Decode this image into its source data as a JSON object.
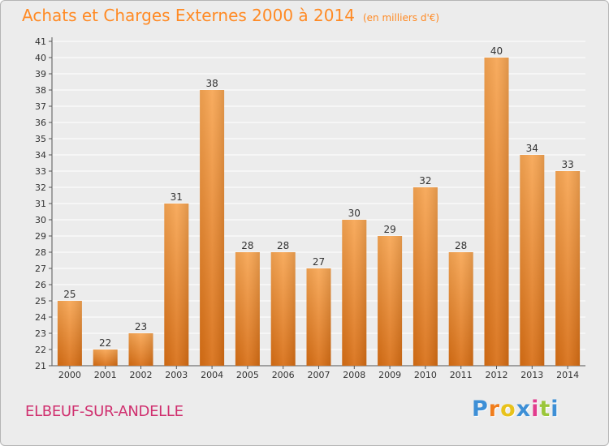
{
  "header": {
    "title": "Achats et Charges Externes 2000 à 2014",
    "unit": "(en milliers d'€)"
  },
  "footer": {
    "location": "ELBEUF-SUR-ANDELLE",
    "logo_letters": [
      "P",
      "r",
      "o",
      "x",
      "i",
      "t",
      "i"
    ],
    "logo_colors": [
      "#3d8fd6",
      "#f07d1c",
      "#e8c21b",
      "#3d8fd6",
      "#e23c8d",
      "#9bc63a",
      "#3d8fd6"
    ]
  },
  "colors": {
    "bar_top": "#f7a552",
    "bar_bottom": "#d86e14",
    "title": "#ff8a24",
    "location": "#d0306f",
    "grid": "#ffffff"
  },
  "chart_data": {
    "type": "bar",
    "title": "Achats et Charges Externes 2000 à 2014",
    "subtitle": "(en milliers d'€)",
    "xlabel": "",
    "ylabel": "",
    "ylim": [
      21,
      41
    ],
    "grid": true,
    "categories": [
      "2000",
      "2001",
      "2002",
      "2003",
      "2004",
      "2005",
      "2006",
      "2007",
      "2008",
      "2009",
      "2010",
      "2011",
      "2012",
      "2013",
      "2014"
    ],
    "values": [
      25,
      22,
      23,
      31,
      38,
      28,
      28,
      27,
      30,
      29,
      32,
      28,
      40,
      34,
      33
    ]
  }
}
